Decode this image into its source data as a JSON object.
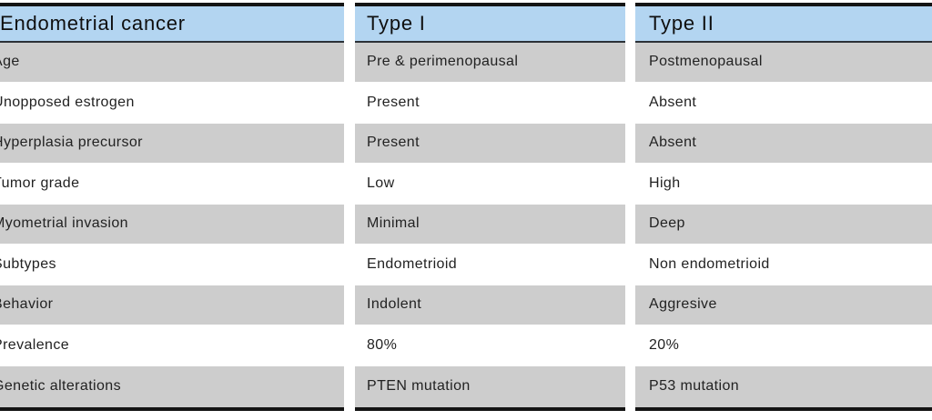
{
  "table": {
    "title": "Endometrial cancer",
    "header": {
      "col1": "Endometrial cancer",
      "col2": "Type I",
      "col3": "Type II"
    },
    "rows": [
      {
        "label": "Age",
        "type1": "Pre & perimenopausal",
        "type2": "Postmenopausal"
      },
      {
        "label": "Unopposed estrogen",
        "type1": "Present",
        "type2": "Absent"
      },
      {
        "label": "Hyperplasia precursor",
        "type1": "Present",
        "type2": "Absent"
      },
      {
        "label": "Tumor grade",
        "type1": "Low",
        "type2": "High"
      },
      {
        "label": "Myometrial invasion",
        "type1": "Minimal",
        "type2": "Deep"
      },
      {
        "label": "Subtypes",
        "type1": "Endometrioid",
        "type2": "Non endometrioid"
      },
      {
        "label": "Behavior",
        "type1": "Indolent",
        "type2": "Aggresive"
      },
      {
        "label": "Prevalence",
        "type1": "80%",
        "type2": "20%"
      },
      {
        "label": "Genetic alterations",
        "type1": "PTEN mutation",
        "type2": "P53 mutation"
      }
    ],
    "colors": {
      "header_blue": "#b3d5f1",
      "row_gray": "#cdcdcd",
      "row_white": "#ffffff",
      "border_dark": "#141414",
      "header_separator": "#2b3036",
      "body_text": "#222222",
      "header_text": "#0f0f0f"
    }
  }
}
